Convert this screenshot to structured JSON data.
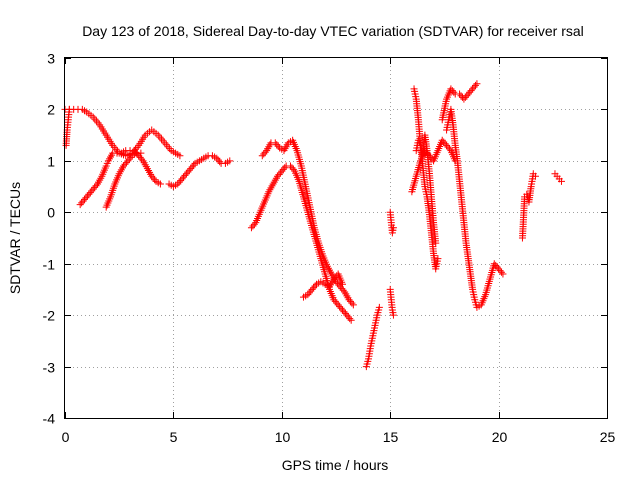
{
  "chart_data": {
    "type": "scatter",
    "title": "Day 123 of 2018, Sidereal Day-to-day VTEC variation (SDTVAR) for receiver rsal",
    "xlabel": "GPS time / hours",
    "ylabel": "SDTVAR / TECUs",
    "xlim": [
      0,
      25
    ],
    "ylim": [
      -4,
      3
    ],
    "xticks": [
      0,
      5,
      10,
      15,
      20,
      25
    ],
    "yticks": [
      -4,
      -3,
      -2,
      -1,
      0,
      1,
      2,
      3
    ],
    "grid": true,
    "marker": "+",
    "color": "#ff0000",
    "series": [
      {
        "x": [
          0.0,
          0.2,
          0.4,
          0.6,
          0.8,
          1.0,
          1.3,
          1.6,
          1.9,
          2.2,
          2.5,
          2.8,
          3.1,
          3.4,
          3.7,
          4.0,
          4.3,
          4.6,
          4.9,
          5.1,
          5.3
        ],
        "y": [
          2.0,
          2.0,
          2.0,
          2.0,
          2.0,
          1.95,
          1.85,
          1.7,
          1.5,
          1.3,
          1.15,
          1.1,
          1.15,
          1.3,
          1.5,
          1.6,
          1.5,
          1.35,
          1.2,
          1.15,
          1.1
        ]
      },
      {
        "x": [
          0.05,
          0.1,
          0.15,
          0.2
        ],
        "y": [
          1.3,
          1.6,
          1.8,
          2.0
        ]
      },
      {
        "x": [
          0.7,
          0.9,
          1.1,
          1.3,
          1.5,
          1.7,
          1.9,
          2.0,
          2.2,
          2.4,
          2.6,
          2.8,
          3.0,
          3.2,
          3.4,
          3.6,
          3.8,
          4.0,
          4.2,
          4.4
        ],
        "y": [
          0.15,
          0.25,
          0.35,
          0.45,
          0.55,
          0.7,
          0.9,
          1.0,
          1.15,
          1.15,
          1.15,
          1.2,
          1.2,
          1.2,
          1.1,
          1.0,
          0.85,
          0.7,
          0.6,
          0.55
        ]
      },
      {
        "x": [
          1.9,
          2.1,
          2.3,
          2.5,
          2.7,
          2.9,
          3.1,
          3.3,
          3.5
        ],
        "y": [
          0.1,
          0.3,
          0.55,
          0.75,
          0.9,
          1.0,
          1.1,
          1.15,
          1.15
        ]
      },
      {
        "x": [
          4.8,
          5.0,
          5.2,
          5.4,
          5.6,
          5.8,
          6.0,
          6.2,
          6.4,
          6.6,
          6.8,
          7.0,
          7.2,
          7.4,
          7.6
        ],
        "y": [
          0.55,
          0.5,
          0.55,
          0.65,
          0.75,
          0.85,
          0.95,
          1.0,
          1.05,
          1.1,
          1.1,
          1.05,
          0.95,
          0.95,
          1.0
        ]
      },
      {
        "x": [
          8.6,
          8.8,
          9.0,
          9.2,
          9.4,
          9.6,
          9.8,
          10.0,
          10.2,
          10.4,
          10.6,
          10.8,
          11.0,
          11.2,
          11.4,
          11.6,
          11.8,
          12.0,
          12.2,
          12.4,
          12.6,
          12.8,
          13.0,
          13.2
        ],
        "y": [
          -0.3,
          -0.2,
          0.0,
          0.2,
          0.4,
          0.55,
          0.7,
          0.8,
          0.9,
          0.9,
          0.8,
          0.6,
          0.3,
          0.0,
          -0.3,
          -0.6,
          -0.9,
          -1.2,
          -1.5,
          -1.7,
          -1.8,
          -1.9,
          -2.0,
          -2.1
        ]
      },
      {
        "x": [
          9.1,
          9.3,
          9.5,
          9.7,
          9.9,
          10.1,
          10.3,
          10.5,
          10.7,
          10.9,
          11.1,
          11.3,
          11.5,
          11.7,
          11.9,
          12.1,
          12.3,
          12.5,
          12.7,
          12.9,
          13.1,
          13.3
        ],
        "y": [
          1.1,
          1.2,
          1.35,
          1.35,
          1.25,
          1.2,
          1.35,
          1.4,
          1.2,
          0.9,
          0.5,
          0.1,
          -0.3,
          -0.6,
          -0.85,
          -1.05,
          -1.2,
          -1.35,
          -1.45,
          -1.55,
          -1.7,
          -1.8
        ]
      },
      {
        "x": [
          11.0,
          11.2,
          11.4,
          11.6,
          11.8,
          12.0,
          12.2,
          12.4,
          12.6,
          12.8
        ],
        "y": [
          -1.65,
          -1.6,
          -1.5,
          -1.4,
          -1.35,
          -1.4,
          -1.45,
          -1.3,
          -1.2,
          -1.4
        ]
      },
      {
        "x": [
          13.9,
          14.0,
          14.1,
          14.2,
          14.3,
          14.4,
          14.5
        ],
        "y": [
          -3.0,
          -2.85,
          -2.6,
          -2.4,
          -2.2,
          -2.0,
          -1.85
        ]
      },
      {
        "x": [
          15.0,
          15.05,
          15.1,
          15.15
        ],
        "y": [
          0.0,
          -0.2,
          -0.4,
          -0.3
        ]
      },
      {
        "x": [
          15.0,
          15.05,
          15.1,
          15.15
        ],
        "y": [
          -1.5,
          -1.7,
          -1.9,
          -2.0
        ]
      },
      {
        "x": [
          16.1,
          16.2,
          16.3,
          16.4,
          16.5,
          16.6,
          16.7,
          16.8,
          16.9,
          17.0,
          17.1,
          17.2
        ],
        "y": [
          2.4,
          2.2,
          1.8,
          1.3,
          0.9,
          0.5,
          0.3,
          0.0,
          -0.4,
          -0.8,
          -1.1,
          -0.9
        ]
      },
      {
        "x": [
          16.2,
          16.3,
          16.4,
          16.5,
          16.6,
          16.7,
          16.8,
          16.9,
          17.0,
          17.1
        ],
        "y": [
          1.2,
          1.4,
          1.3,
          1.1,
          1.5,
          1.2,
          0.8,
          0.3,
          -0.2,
          -0.6
        ]
      },
      {
        "x": [
          16.0,
          16.2,
          16.4,
          16.6,
          16.8,
          17.0,
          17.2,
          17.4,
          17.6,
          17.8,
          18.0
        ],
        "y": [
          0.4,
          0.7,
          1.0,
          1.2,
          1.1,
          1.0,
          1.2,
          1.4,
          1.3,
          1.2,
          1.0
        ]
      },
      {
        "x": [
          17.4,
          17.6,
          17.8,
          18.0,
          18.2,
          18.4,
          18.6,
          18.8,
          19.0
        ],
        "y": [
          1.8,
          2.2,
          2.4,
          2.3,
          2.3,
          2.2,
          2.3,
          2.4,
          2.5
        ]
      },
      {
        "x": [
          17.6,
          17.7,
          17.8,
          17.9,
          18.0,
          18.1,
          18.2,
          18.3,
          18.4,
          18.5,
          18.6,
          18.7,
          18.8,
          18.9,
          19.0,
          19.2,
          19.4,
          19.6,
          19.8,
          20.0,
          20.2
        ],
        "y": [
          1.6,
          1.8,
          2.0,
          1.7,
          1.3,
          1.0,
          0.6,
          0.2,
          -0.2,
          -0.6,
          -0.9,
          -1.2,
          -1.5,
          -1.7,
          -1.85,
          -1.8,
          -1.6,
          -1.3,
          -1.0,
          -1.1,
          -1.2
        ]
      },
      {
        "x": [
          21.1,
          21.2,
          21.3,
          21.4,
          21.5,
          21.6,
          21.7
        ],
        "y": [
          -0.5,
          0.3,
          0.35,
          0.2,
          0.5,
          0.75,
          0.7
        ]
      },
      {
        "x": [
          22.6,
          22.7,
          22.8,
          22.9
        ],
        "y": [
          0.75,
          0.7,
          0.65,
          0.6
        ]
      }
    ]
  }
}
